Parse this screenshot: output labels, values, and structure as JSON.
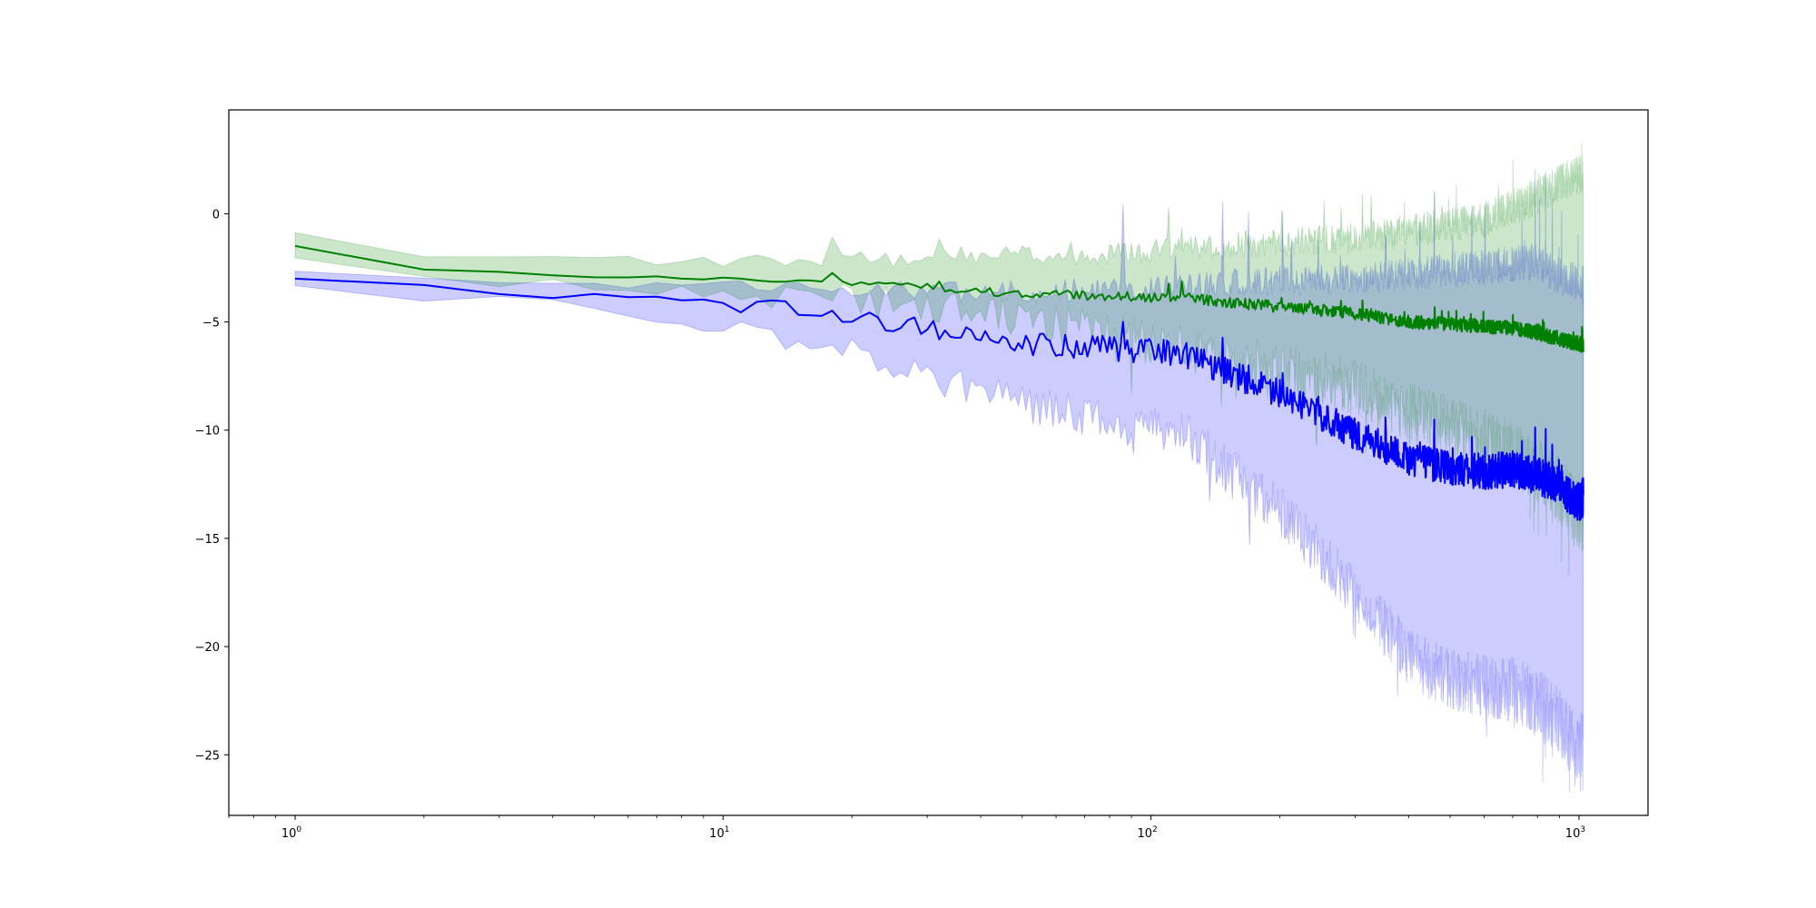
{
  "chart_data": {
    "type": "line",
    "title": "",
    "xlabel": "",
    "ylabel": "",
    "x_scale": "log",
    "xlim": [
      0.7,
      1450
    ],
    "ylim": [
      -27.8,
      4.8
    ],
    "grid": false,
    "legend": "none",
    "x_ticks": [
      {
        "value": 1,
        "label": "10^0"
      },
      {
        "value": 10,
        "label": "10^1"
      },
      {
        "value": 100,
        "label": "10^2"
      },
      {
        "value": 1000,
        "label": "10^3"
      }
    ],
    "y_ticks": [
      0,
      -5,
      -10,
      -15,
      -20,
      -25
    ],
    "y_tick_labels": [
      "0",
      "−5",
      "−10",
      "−15",
      "−20",
      "−25"
    ],
    "series": [
      {
        "color": "#008000",
        "fill_color": "#008000",
        "x": [
          1,
          2,
          4,
          8,
          16,
          30,
          50,
          80,
          120,
          200,
          300,
          400,
          500,
          600,
          700,
          800,
          900,
          1000,
          1024
        ],
        "mean": [
          -1.5,
          -2.6,
          -2.8,
          -3.0,
          -3.1,
          -3.4,
          -3.7,
          -3.8,
          -3.9,
          -4.3,
          -4.6,
          -5.0,
          -5.1,
          -5.2,
          -5.3,
          -5.5,
          -5.8,
          -6.0,
          -6.1
        ],
        "upper": [
          -0.9,
          -2.1,
          -2.1,
          -2.2,
          -2.2,
          -2.0,
          -1.9,
          -1.8,
          -1.6,
          -1.3,
          -1.1,
          -0.8,
          -0.5,
          -0.3,
          0.3,
          0.8,
          1.5,
          1.8,
          1.7
        ],
        "lower": [
          -2.2,
          -3.0,
          -3.3,
          -3.6,
          -3.8,
          -4.3,
          -4.9,
          -5.5,
          -6.3,
          -7.2,
          -8.0,
          -9.2,
          -9.8,
          -10.5,
          -11.0,
          -11.8,
          -12.8,
          -14.0,
          -14.2
        ]
      },
      {
        "color": "#0000ff",
        "fill_color": "#0000ff",
        "x": [
          1,
          2,
          4,
          8,
          16,
          30,
          50,
          80,
          120,
          200,
          300,
          400,
          500,
          600,
          700,
          800,
          900,
          1000,
          1024
        ],
        "mean": [
          -3.0,
          -3.4,
          -3.7,
          -4.1,
          -4.4,
          -5.3,
          -6.0,
          -6.2,
          -6.5,
          -8.3,
          -10.2,
          -11.3,
          -11.8,
          -11.9,
          -11.8,
          -12.1,
          -12.6,
          -13.3,
          -13.1
        ],
        "upper": [
          -2.6,
          -3.0,
          -3.1,
          -3.3,
          -3.4,
          -3.6,
          -3.6,
          -3.5,
          -3.4,
          -3.1,
          -3.0,
          -2.8,
          -2.6,
          -2.5,
          -2.3,
          -2.2,
          -2.9,
          -3.2,
          -3.3
        ],
        "lower": [
          -3.4,
          -3.8,
          -4.3,
          -5.0,
          -5.8,
          -7.5,
          -8.8,
          -9.5,
          -10.2,
          -13.8,
          -17.5,
          -20.5,
          -21.5,
          -21.8,
          -22.0,
          -22.5,
          -23.5,
          -25.0,
          -24.0
        ]
      }
    ]
  }
}
